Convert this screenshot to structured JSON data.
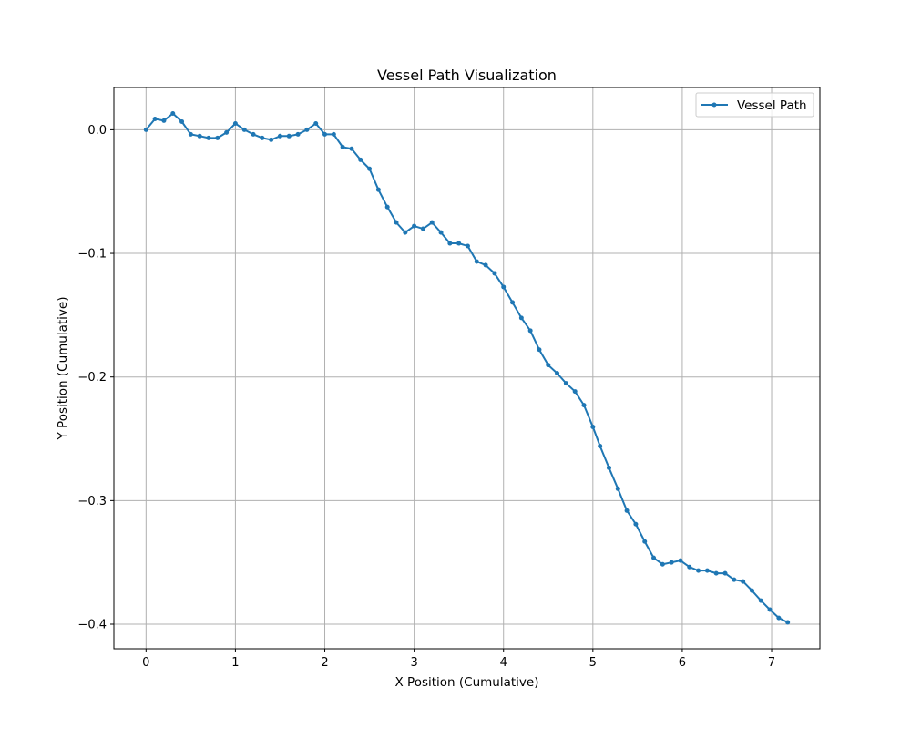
{
  "chart_data": {
    "type": "line",
    "title": "Vessel Path Visualization",
    "xlabel": "X Position (Cumulative)",
    "ylabel": "Y Position (Cumulative)",
    "xlim": [
      -0.36,
      7.54
    ],
    "ylim": [
      -0.4199,
      0.0342
    ],
    "grid": true,
    "legend_position": "upper right",
    "xticks": [
      0,
      1,
      2,
      3,
      4,
      5,
      6,
      7
    ],
    "xtick_labels": [
      "0",
      "1",
      "2",
      "3",
      "4",
      "5",
      "6",
      "7"
    ],
    "yticks": [
      0.0,
      -0.1,
      -0.2,
      -0.3,
      -0.4
    ],
    "ytick_labels": [
      "0.0",
      "−0.1",
      "−0.2",
      "−0.3",
      "−0.4"
    ],
    "series": [
      {
        "name": "Vessel Path",
        "color": "#1f77b4",
        "marker": "circle",
        "x": [
          0,
          0.1,
          0.2,
          0.3,
          0.4,
          0.5,
          0.6,
          0.7,
          0.8,
          0.9,
          1.0,
          1.1,
          1.2,
          1.3,
          1.4,
          1.5,
          1.6,
          1.7,
          1.8,
          1.9,
          2.0,
          2.1,
          2.2,
          2.3,
          2.4,
          2.5,
          2.6,
          2.7,
          2.8,
          2.9,
          3.0,
          3.1,
          3.2,
          3.3,
          3.4,
          3.5,
          3.6,
          3.7,
          3.8,
          3.9,
          4.0,
          4.1,
          4.2,
          4.3,
          4.4,
          4.5,
          4.6,
          4.7,
          4.8,
          4.9,
          5.0,
          5.08,
          5.18,
          5.28,
          5.38,
          5.48,
          5.58,
          5.68,
          5.78,
          5.88,
          5.98,
          6.08,
          6.18,
          6.28,
          6.38,
          6.48,
          6.58,
          6.68,
          6.78,
          6.88,
          6.98,
          7.08,
          7.18
        ],
        "y": [
          0.0,
          0.0088,
          0.0074,
          0.0132,
          0.0066,
          -0.0037,
          -0.0051,
          -0.0066,
          -0.0066,
          -0.0022,
          0.0051,
          0.0,
          -0.0037,
          -0.0066,
          -0.0081,
          -0.0051,
          -0.0051,
          -0.0037,
          0.0,
          0.0051,
          -0.0037,
          -0.0037,
          -0.014,
          -0.0154,
          -0.0243,
          -0.0316,
          -0.0485,
          -0.0625,
          -0.075,
          -0.0831,
          -0.0779,
          -0.0801,
          -0.075,
          -0.0831,
          -0.0919,
          -0.0919,
          -0.0941,
          -0.1066,
          -0.1095,
          -0.1162,
          -0.1272,
          -0.1397,
          -0.1522,
          -0.1625,
          -0.1779,
          -0.1904,
          -0.197,
          -0.2051,
          -0.2117,
          -0.2228,
          -0.2404,
          -0.2559,
          -0.2735,
          -0.2904,
          -0.3081,
          -0.3191,
          -0.3331,
          -0.3463,
          -0.3515,
          -0.35,
          -0.3485,
          -0.3537,
          -0.3566,
          -0.3566,
          -0.3588,
          -0.3588,
          -0.364,
          -0.3654,
          -0.3728,
          -0.3809,
          -0.3882,
          -0.3949,
          -0.3985
        ]
      }
    ]
  }
}
